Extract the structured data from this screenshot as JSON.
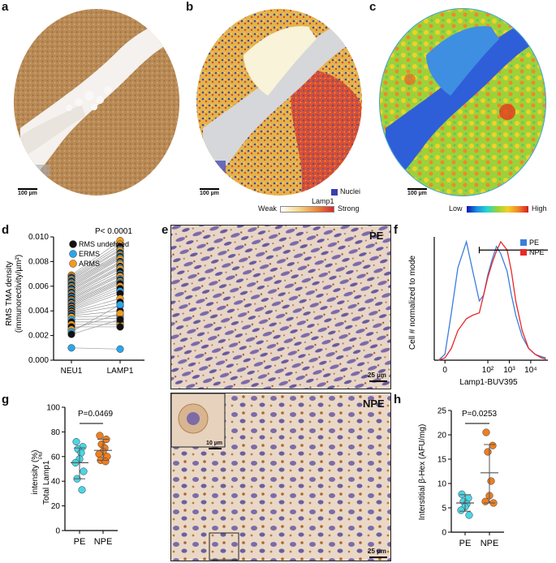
{
  "panels": {
    "a": {
      "letter": "a",
      "scale_bar": "100 µm"
    },
    "b": {
      "letter": "b",
      "scale_bar": "100 µm",
      "nuclei_label": "Nuclei",
      "colorbar_title": "Lamp1",
      "weak_label": "Weak",
      "strong_label": "Strong"
    },
    "c": {
      "letter": "c",
      "scale_bar": "100 µm",
      "low_label": "Low",
      "high_label": "High"
    },
    "d": {
      "letter": "d",
      "pvalue": "P< 0.0001"
    },
    "e": {
      "letter": "e",
      "pe_label": "PE",
      "npe_label": "NPE",
      "scale_top": "25 µm",
      "scale_inset": "10 µm",
      "scale_bottom": "25 µm"
    },
    "f": {
      "letter": "f"
    },
    "g": {
      "letter": "g",
      "pvalue": "P=0.0469"
    },
    "h": {
      "letter": "h",
      "pvalue": "P=0.0253"
    }
  },
  "chart_data": [
    {
      "id": "d",
      "type": "scatter",
      "title": "",
      "ylabel": "RMS TMA density (immunorectivity/µm²)",
      "ylabel_line1": "RMS TMA density",
      "ylabel_line2": "(immunorectivity/µm²)",
      "categories": [
        "NEU1",
        "LAMP1"
      ],
      "ylim": [
        0,
        0.01
      ],
      "yticks": [
        "0.000",
        "0.002",
        "0.004",
        "0.006",
        "0.008",
        "0.010"
      ],
      "legend": [
        "RMS undefined",
        "ERMS",
        "ARMS"
      ],
      "legend_colors": [
        "#111111",
        "#2aa6ee",
        "#f39a1e"
      ],
      "pairs": [
        [
          0.0069,
          0.0097,
          2
        ],
        [
          0.0068,
          0.0094,
          2
        ],
        [
          0.0067,
          0.0092,
          0
        ],
        [
          0.0066,
          0.009,
          1
        ],
        [
          0.0065,
          0.0089,
          2
        ],
        [
          0.0064,
          0.0087,
          0
        ],
        [
          0.0063,
          0.0086,
          1
        ],
        [
          0.0062,
          0.0085,
          2
        ],
        [
          0.0061,
          0.0084,
          0
        ],
        [
          0.006,
          0.0083,
          1
        ],
        [
          0.0059,
          0.0082,
          2
        ],
        [
          0.0058,
          0.008,
          0
        ],
        [
          0.0057,
          0.0079,
          1
        ],
        [
          0.0056,
          0.0078,
          2
        ],
        [
          0.0055,
          0.0076,
          0
        ],
        [
          0.0054,
          0.0075,
          1
        ],
        [
          0.0053,
          0.0074,
          2
        ],
        [
          0.0052,
          0.0072,
          0
        ],
        [
          0.0051,
          0.007,
          1
        ],
        [
          0.005,
          0.0069,
          0
        ],
        [
          0.0049,
          0.0068,
          2
        ],
        [
          0.0048,
          0.0066,
          1
        ],
        [
          0.0047,
          0.0065,
          0
        ],
        [
          0.0046,
          0.0064,
          2
        ],
        [
          0.0045,
          0.0063,
          1
        ],
        [
          0.0044,
          0.0062,
          0
        ],
        [
          0.0043,
          0.006,
          2
        ],
        [
          0.0042,
          0.0058,
          0
        ],
        [
          0.0041,
          0.0056,
          1
        ],
        [
          0.004,
          0.0054,
          0
        ],
        [
          0.0039,
          0.005,
          2
        ],
        [
          0.0038,
          0.0047,
          0
        ],
        [
          0.0037,
          0.0044,
          1
        ],
        [
          0.0036,
          0.004,
          0
        ],
        [
          0.0035,
          0.0036,
          2
        ],
        [
          0.0033,
          0.0034,
          1
        ],
        [
          0.0031,
          0.0031,
          0
        ],
        [
          0.0029,
          0.0029,
          2
        ],
        [
          0.0027,
          0.0027,
          0
        ],
        [
          0.0025,
          0.0038,
          2
        ],
        [
          0.0023,
          0.0045,
          1
        ],
        [
          0.0021,
          0.0033,
          0
        ],
        [
          0.001,
          0.0009,
          1
        ]
      ]
    },
    {
      "id": "f",
      "type": "line",
      "xlabel": "Lamp1-BUV395",
      "ylabel": "Cell # normalized to mode",
      "xtick_labels": [
        "0",
        "10²",
        "10³",
        "10⁴"
      ],
      "series": [
        {
          "name": "PE",
          "color": "#3b7ddd",
          "x": [
            -0.3,
            0,
            0.3,
            0.6,
            1.0,
            1.3,
            1.6,
            1.8,
            2.0,
            2.2,
            2.4,
            2.6,
            2.9,
            3.1,
            3.3,
            3.6,
            3.9,
            4.2,
            4.5,
            4.7
          ],
          "y": [
            0,
            5,
            40,
            78,
            100,
            75,
            50,
            55,
            72,
            85,
            96,
            90,
            75,
            55,
            38,
            20,
            10,
            5,
            3,
            2
          ]
        },
        {
          "name": "NPE",
          "color": "#e8282b",
          "x": [
            -0.3,
            0,
            0.3,
            0.6,
            1.0,
            1.3,
            1.6,
            1.8,
            2.0,
            2.2,
            2.4,
            2.6,
            2.9,
            3.1,
            3.3,
            3.6,
            3.9,
            4.2,
            4.5,
            4.7
          ],
          "y": [
            0,
            2,
            10,
            25,
            35,
            38,
            40,
            55,
            70,
            82,
            92,
            100,
            93,
            75,
            50,
            25,
            10,
            5,
            2,
            1
          ]
        }
      ]
    },
    {
      "id": "g",
      "type": "scatter",
      "ylabel": "Total Lamp1PM intensity (%)",
      "ylabel_main": "Total Lamp1",
      "ylabel_sup": "PM",
      "ylabel_line2": "intensity (%)",
      "categories": [
        "PE",
        "NPE"
      ],
      "ylim": [
        0,
        100
      ],
      "yticks": [
        "0",
        "20",
        "40",
        "60",
        "80",
        "100"
      ],
      "series": [
        {
          "name": "PE",
          "color": "#4ad6e6",
          "values": [
            72,
            68,
            66,
            63,
            58,
            55,
            48,
            42,
            33
          ],
          "mean": 55,
          "sd_low": 42,
          "sd_high": 67
        },
        {
          "name": "NPE",
          "color": "#f07e1e",
          "values": [
            77,
            74,
            70,
            67,
            64,
            62,
            60,
            57,
            56
          ],
          "mean": 65,
          "sd_low": 57,
          "sd_high": 74
        }
      ]
    },
    {
      "id": "h",
      "type": "scatter",
      "ylabel": "Interstitial β-Hex (AFU/mg)",
      "categories": [
        "PE",
        "NPE"
      ],
      "ylim": [
        0,
        25
      ],
      "yticks": [
        "0",
        "5",
        "10",
        "15",
        "20",
        "25"
      ],
      "series": [
        {
          "name": "PE",
          "color": "#4ad6e6",
          "values": [
            7.8,
            7.0,
            6.3,
            5.8,
            5.2,
            4.5,
            3.5
          ],
          "mean": 6.0,
          "sd_low": 4.3,
          "sd_high": 7.7
        },
        {
          "name": "NPE",
          "color": "#f07e1e",
          "values": [
            20.5,
            17.8,
            16.5,
            10.5,
            7.5,
            6.3,
            6.0
          ],
          "mean": 12.2,
          "sd_low": 6.0,
          "sd_high": 18.0
        }
      ]
    }
  ]
}
